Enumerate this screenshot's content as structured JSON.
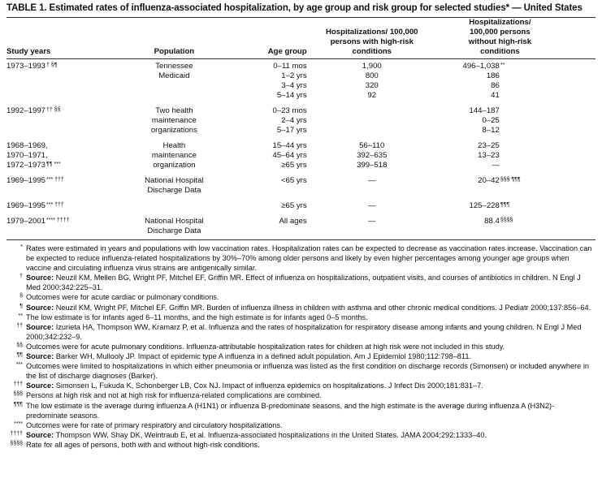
{
  "title": "TABLE 1. Estimated rates of influenza-associated hospitalization, by age group and risk group for selected studies* — United States",
  "headers": [
    "Study years",
    "Population",
    "Age group",
    "Hospitalizations/ 100,000 persons with high-risk conditions",
    "Hospitalizations/ 100,000 persons without high-risk conditions"
  ],
  "groups": [
    {
      "rows": [
        {
          "years": "1973–1993",
          "ysup": "† §¶",
          "pop": "Tennessee",
          "age": "0–11 mos",
          "high": "1,900",
          "low": "496–1,038",
          "lsup": "**"
        },
        {
          "years": "",
          "pop": "Medicaid",
          "age": "1–2 yrs",
          "high": "800",
          "low": "186"
        },
        {
          "years": "",
          "pop": "",
          "age": "3–4 yrs",
          "high": "320",
          "low": "86"
        },
        {
          "years": "",
          "pop": "",
          "age": "5–14 yrs",
          "high": "92",
          "low": "41"
        }
      ]
    },
    {
      "rows": [
        {
          "years": "1992–1997",
          "ysup": "†† §§",
          "pop": "Two health",
          "age": "0–23 mos",
          "high": "",
          "low": "144–187"
        },
        {
          "years": "",
          "pop": "maintenance",
          "age": "2–4 yrs",
          "high": "",
          "low": "0–25"
        },
        {
          "years": "",
          "pop": "organizations",
          "age": "5–17 yrs",
          "high": "",
          "low": "8–12"
        }
      ]
    },
    {
      "rows": [
        {
          "years": "1968–1969,",
          "pop": "Health",
          "age": "15–44 yrs",
          "high": "56–110",
          "low": "23–25"
        },
        {
          "years": "1970–1971,",
          "pop": "maintenance",
          "age": "45–64 yrs",
          "high": "392–635",
          "low": "13–23"
        },
        {
          "years": "1972–1973",
          "ysup": "¶¶ ***",
          "pop": "organization",
          "age": "≥65 yrs",
          "high": "399–518",
          "low": "—"
        }
      ]
    },
    {
      "rows": [
        {
          "years": "1969–1995",
          "ysup": "*** †††",
          "pop": "National Hospital",
          "age": "<65 yrs",
          "high": "—",
          "low": "20–42",
          "lsup": "§§§ ¶¶¶"
        },
        {
          "years": "",
          "pop": "Discharge Data",
          "age": "",
          "high": "",
          "low": ""
        }
      ]
    },
    {
      "rows": [
        {
          "years": "1969–1995",
          "ysup": "*** †††",
          "pop": "",
          "age": "≥65 yrs",
          "high": "—",
          "low": "125–228",
          "lsup": "¶¶¶"
        }
      ]
    },
    {
      "rows": [
        {
          "years": "1979–2001",
          "ysup": "**** ††††",
          "pop": "National Hospital",
          "age": "All ages",
          "high": "—",
          "low": "88.4",
          "lsup": "§§§§"
        },
        {
          "years": "",
          "pop": "Discharge Data",
          "age": "",
          "high": "",
          "low": ""
        }
      ]
    }
  ],
  "footnotes": [
    {
      "mark": "*",
      "src": "",
      "text": "Rates were estimated in years and populations with low vaccination rates. Hospitalization rates can be expected to decrease as vaccination rates increase. Vaccination can be expected to reduce influenza-related hospitalizations by 30%–70% among older persons and likely by even higher percentages among younger age groups when vaccine and circulating influenza virus strains are antigenically similar."
    },
    {
      "mark": "†",
      "src": "Source:",
      "text": " Neuzil KM, Mellen BG, Wright PF, Mitchel EF, Griffin MR. Effect of influenza on hospitalizations, outpatient visits, and courses of antibiotics in children. N Engl J Med 2000;342:225–31."
    },
    {
      "mark": "§",
      "src": "",
      "text": "Outcomes were for acute cardiac or pulmonary conditions."
    },
    {
      "mark": "¶",
      "src": "Source:",
      "text": " Neuzil KM, Wright PF, Mitchel EF, Griffin MR. Burden of influenza illness in children with asthma and other chronic medical conditions. J Pediatr 2000;137:856–64."
    },
    {
      "mark": "**",
      "src": "",
      "text": "The low estimate is for infants aged 6–11 months, and the high estimate is for infants aged 0–5 months."
    },
    {
      "mark": "††",
      "src": "Source:",
      "text": " Izurieta HA, Thompson WW, Kramarz P, et al. Influenza and the rates of hospitalization for respiratory disease among infants and young children. N Engl J Med 2000;342:232–9."
    },
    {
      "mark": "§§",
      "src": "",
      "text": "Outcomes were for acute pulmonary conditions. Influenza-attributable hospitalization rates for children at high risk were not included in this study."
    },
    {
      "mark": "¶¶",
      "src": "Source:",
      "text": " Barker WH, Mullooly JP. Impact of epidemic type A influenza in a defined adult population. Am J Epidemiol 1980;112:798–811."
    },
    {
      "mark": "***",
      "src": "",
      "text": "Outcomes were limited to hospitalizations in which either pneumonia or influenza was listed as the first condition on discharge records (Simonsen) or included anywhere in the list of discharge diagnoses (Barker)."
    },
    {
      "mark": "†††",
      "src": "Source:",
      "text": " Simonsen L, Fukuda K, Schonberger LB, Cox NJ. Impact of influenza epidemics on hospitalizations. J Infect Dis 2000;181:831–7."
    },
    {
      "mark": "§§§",
      "src": "",
      "text": "Persons at high risk and not at high risk for influenza-related complications are combined."
    },
    {
      "mark": "¶¶¶",
      "src": "",
      "text": "The low estimate is the average during influenza A (H1N1) or influenza B-predominate seasons, and the high estimate is the average during influenza A (H3N2)-predominate seasons."
    },
    {
      "mark": "****",
      "src": "",
      "text": "Outcomes were for rate of primary respiratory and circulatory hospitalizations."
    },
    {
      "mark": "††††",
      "src": "Source:",
      "text": " Thompson WW, Shay DK, Weintraub E, et al. Influenza-associated hospitalizations in the United States. JAMA 2004;292:1333–40."
    },
    {
      "mark": "§§§§",
      "src": "",
      "text": "Rate for all ages of persons, both with and without high-risk conditions."
    }
  ]
}
